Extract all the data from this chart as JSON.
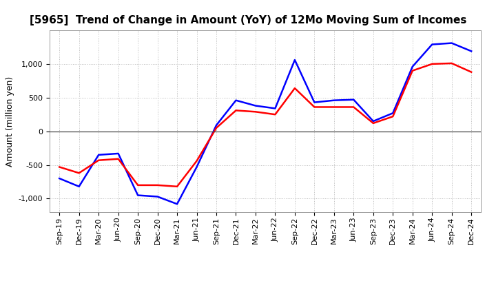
{
  "title": "[5965]  Trend of Change in Amount (YoY) of 12Mo Moving Sum of Incomes",
  "ylabel": "Amount (million yen)",
  "xlabel": "",
  "x_labels": [
    "Sep-19",
    "Dec-19",
    "Mar-20",
    "Jun-20",
    "Sep-20",
    "Dec-20",
    "Mar-21",
    "Jun-21",
    "Sep-21",
    "Dec-21",
    "Mar-22",
    "Jun-22",
    "Sep-22",
    "Dec-22",
    "Mar-23",
    "Jun-23",
    "Sep-23",
    "Dec-23",
    "Mar-24",
    "Jun-24",
    "Sep-24",
    "Dec-24"
  ],
  "ordinary_income": [
    -700,
    -820,
    -350,
    -330,
    -950,
    -970,
    -1080,
    -530,
    90,
    460,
    380,
    340,
    1060,
    430,
    460,
    470,
    150,
    270,
    960,
    1290,
    1310,
    1190
  ],
  "net_income": [
    -530,
    -620,
    -430,
    -410,
    -800,
    -800,
    -820,
    -440,
    50,
    310,
    290,
    250,
    640,
    360,
    360,
    360,
    120,
    220,
    900,
    1000,
    1010,
    880
  ],
  "ordinary_color": "#0000ff",
  "net_color": "#ff0000",
  "ylim": [
    -1200,
    1500
  ],
  "yticks": [
    -1000,
    -500,
    0,
    500,
    1000
  ],
  "background_color": "#ffffff",
  "grid_color": "#bbbbbb",
  "title_fontsize": 11,
  "axis_fontsize": 9,
  "tick_fontsize": 8,
  "legend_fontsize": 9
}
